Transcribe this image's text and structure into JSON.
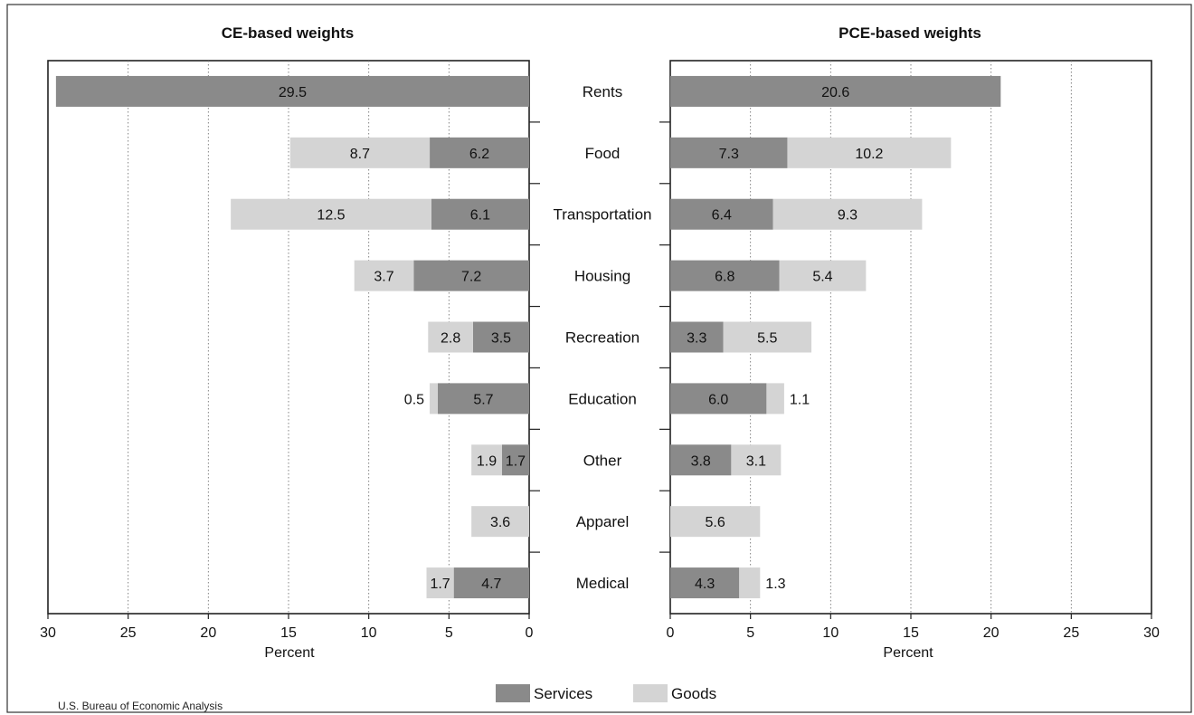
{
  "chart_data": {
    "type": "bar",
    "orientation": "horizontal",
    "stacked": true,
    "categories": [
      "Rents",
      "Food",
      "Transportation",
      "Housing",
      "Recreation",
      "Education",
      "Other",
      "Apparel",
      "Medical"
    ],
    "panels": [
      {
        "title": "CE-based weights",
        "xlabel": "Percent",
        "xlim": [
          30,
          0
        ],
        "xticks": [
          30,
          25,
          20,
          15,
          10,
          5,
          0
        ],
        "direction": "right-to-left",
        "series": [
          {
            "name": "Services",
            "values": [
              29.5,
              6.2,
              6.1,
              7.2,
              3.5,
              5.7,
              1.7,
              0,
              4.7
            ]
          },
          {
            "name": "Goods",
            "values": [
              0,
              8.7,
              12.5,
              3.7,
              2.8,
              0.5,
              1.9,
              3.6,
              1.7
            ]
          }
        ],
        "grid": true
      },
      {
        "title": "PCE-based weights",
        "xlabel": "Percent",
        "xlim": [
          0,
          30
        ],
        "xticks": [
          0,
          5,
          10,
          15,
          20,
          25,
          30
        ],
        "direction": "left-to-right",
        "series": [
          {
            "name": "Services",
            "values": [
              20.6,
              7.3,
              6.4,
              6.8,
              3.3,
              6.0,
              3.8,
              0,
              4.3
            ]
          },
          {
            "name": "Goods",
            "values": [
              0,
              10.2,
              9.3,
              5.4,
              5.5,
              1.1,
              3.1,
              5.6,
              1.3
            ]
          }
        ],
        "grid": true
      }
    ],
    "legend": {
      "placement": "bottom-center",
      "items": [
        {
          "name": "Services",
          "color": "#8a8a8a"
        },
        {
          "name": "Goods",
          "color": "#d4d4d4"
        }
      ]
    },
    "colors": {
      "Services": "#8a8a8a",
      "Goods": "#d4d4d4"
    }
  },
  "source": "U.S. Bureau of Economic Analysis"
}
